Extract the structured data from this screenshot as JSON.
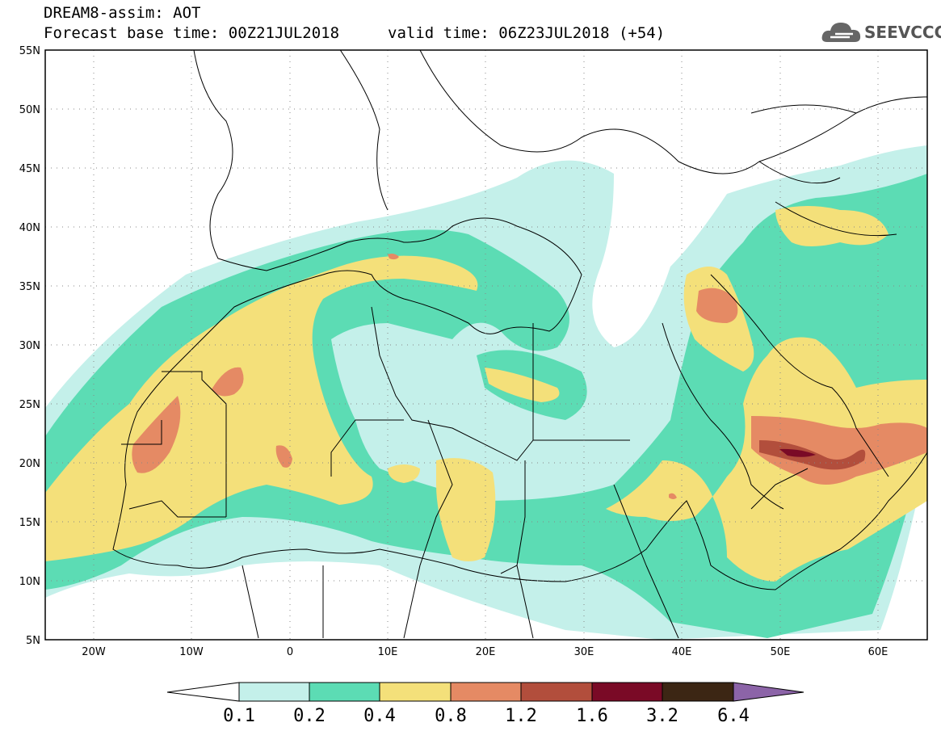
{
  "header": {
    "title": "DREAM8-assim: AOT",
    "base_time": "Forecast base time: 00Z21JUL2018",
    "valid_time": "valid time: 06Z23JUL2018 (+54)"
  },
  "logo": {
    "text": "SEEVCCC",
    "icon": "cloud-icon"
  },
  "map": {
    "lat_labels": [
      "55N",
      "50N",
      "45N",
      "40N",
      "35N",
      "30N",
      "25N",
      "20N",
      "15N",
      "10N",
      "5N"
    ],
    "lon_labels": [
      "20W",
      "10W",
      "0",
      "10E",
      "20E",
      "30E",
      "40E",
      "50E",
      "60E"
    ]
  },
  "colorbar": {
    "labels": [
      "0.1",
      "0.2",
      "0.4",
      "0.8",
      "1.2",
      "1.6",
      "3.2",
      "6.4"
    ],
    "colors": [
      "#ffffff",
      "#c4f0ea",
      "#5cdcb4",
      "#f4e07a",
      "#e58a64",
      "#b24e3c",
      "#7a0a26",
      "#3c2614",
      "#8c64a8"
    ]
  },
  "colors": {
    "level_0_2": "#c4f0ea",
    "level_0_4": "#5cdcb4",
    "level_0_8": "#f4e07a",
    "level_1_2": "#e58a64",
    "level_1_6": "#b24e3c",
    "level_3_2": "#7a0a26"
  }
}
